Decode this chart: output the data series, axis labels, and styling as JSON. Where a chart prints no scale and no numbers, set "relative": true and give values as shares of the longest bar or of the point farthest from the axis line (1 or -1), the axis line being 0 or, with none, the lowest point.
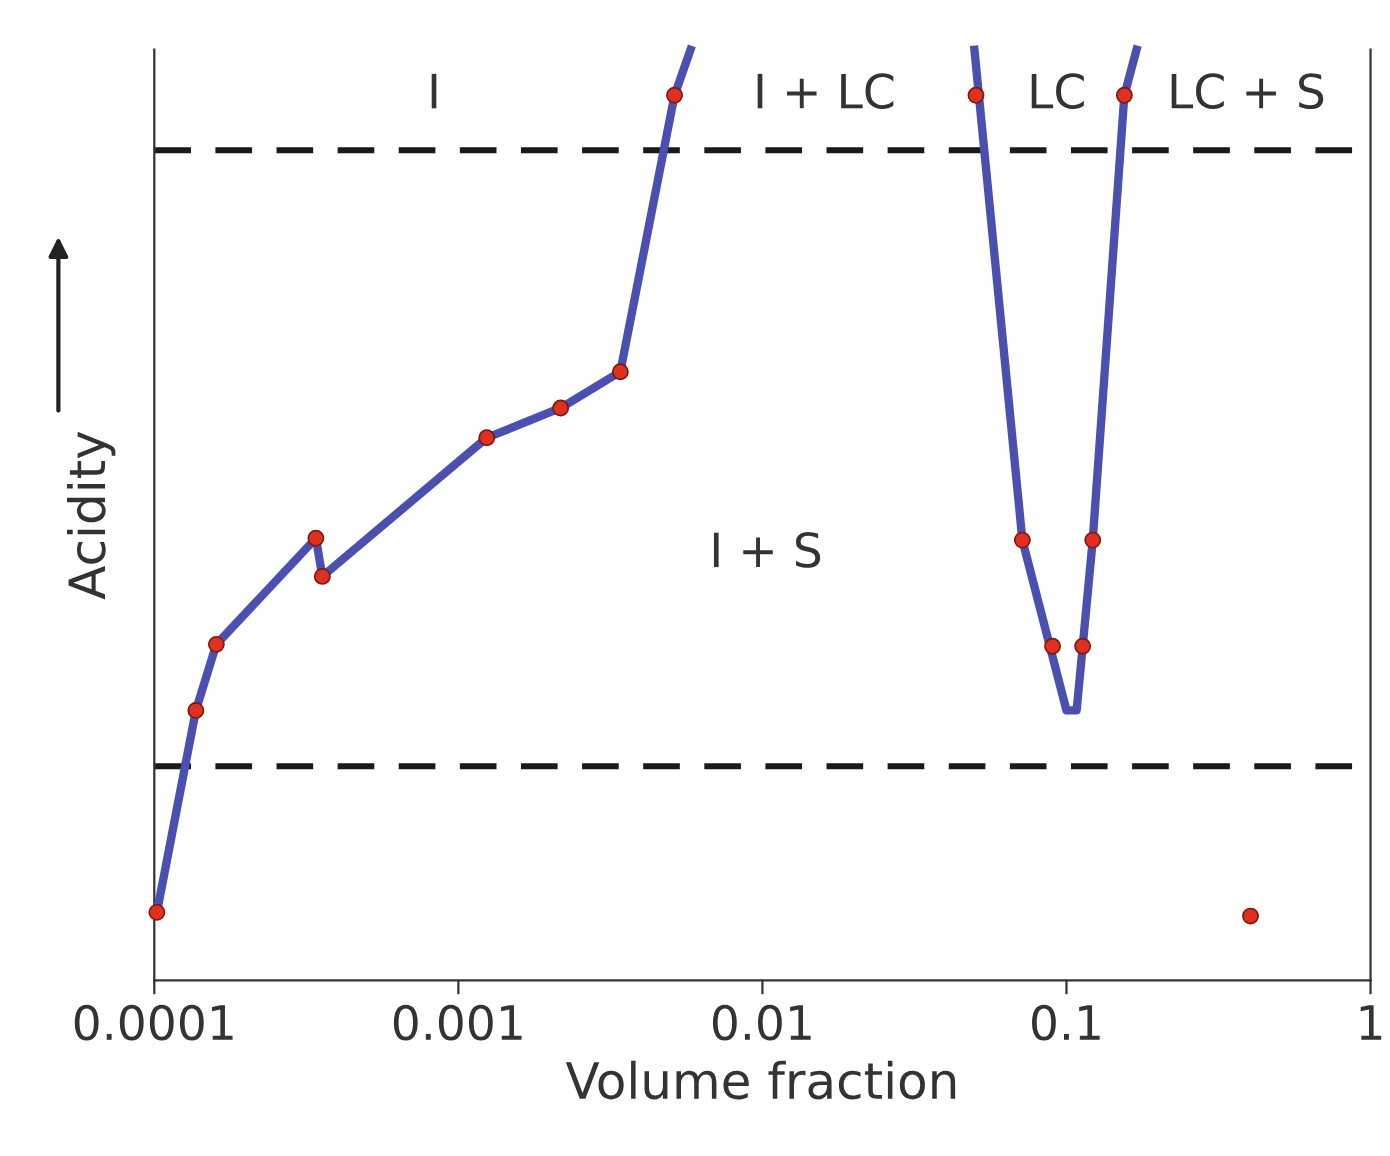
{
  "chart_data": {
    "type": "line",
    "xlabel": "Volume fraction",
    "ylabel": "Acidity",
    "log": "x",
    "relative": true,
    "grid": false,
    "legend": false,
    "xlim": [
      0.0001,
      1
    ],
    "xticks": [
      0.0001,
      0.001,
      0.01,
      0.1,
      1
    ],
    "tick_labels": "x",
    "series": [
      {
        "color": "#4a4fb0",
        "marker": "none",
        "x": [
          0.000102,
          0.000137,
          0.00016,
          0.00034,
          0.000357,
          0.00124,
          0.00217,
          0.00341,
          0.00514,
          0.0058
        ],
        "values": [
          0.073,
          0.29,
          0.361,
          0.475,
          0.434,
          0.583,
          0.615,
          0.654,
          0.951,
          1
        ]
      },
      {
        "color": "#4a4fb0",
        "marker": "none",
        "x": [
          0.0498,
          0.0716,
          0.1,
          0.108,
          0.122,
          0.155,
          0.17
        ],
        "values": [
          1,
          0.473,
          0.29,
          0.29,
          0.473,
          0.951,
          1
        ]
      },
      {
        "type": "scatter",
        "color": "#e03020",
        "marker": "circle",
        "x": [
          0.000102,
          0.000137,
          0.00016,
          0.00034,
          0.000357,
          0.00124,
          0.00217,
          0.00341,
          0.00514,
          0.0504,
          0.0716,
          0.09,
          0.113,
          0.122,
          0.155,
          0.403
        ],
        "values": [
          0.073,
          0.29,
          0.361,
          0.475,
          0.434,
          0.583,
          0.615,
          0.654,
          0.951,
          0.951,
          0.473,
          0.359,
          0.359,
          0.473,
          0.951,
          0.069
        ]
      }
    ],
    "ref_lines": [
      {
        "axis": "y",
        "value": 0.892,
        "color": "#1a1a1a",
        "line_style": "dashed"
      },
      {
        "axis": "y",
        "value": 0.23,
        "color": "#1a1a1a",
        "line_style": "dashed"
      }
    ],
    "annotations": [
      "I",
      "I + LC",
      "LC",
      "LC + S",
      "I + S"
    ]
  }
}
